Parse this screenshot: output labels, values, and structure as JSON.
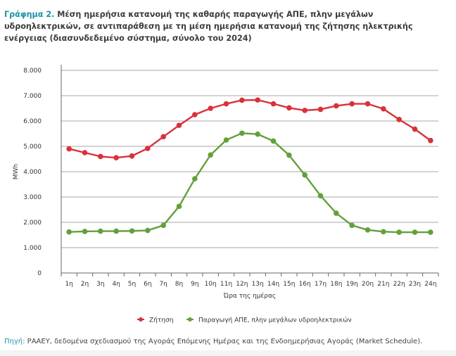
{
  "title": {
    "lead": "Γράφημα 2.",
    "text": "Μέση ημερήσια κατανομή της καθαρής παραγωγής ΑΠΕ, πλην μεγάλων υδροηλεκτρικών, σε αντιπαράθεση με τη μέση ημερήσια κατανομή της ζήτησης ηλεκτρικής ενέργειας (διασυνδεδεμένο σύστημα, σύνολο του 2024)"
  },
  "source": {
    "lead": "Πηγή:",
    "text": "ΡΑΑΕΥ, δεδομένα σχεδιασμού της Αγοράς Επόμενης Ημέρας και της Ενδοημερήσιας Αγοράς (Market Schedule)."
  },
  "chart_data": {
    "type": "line",
    "title": "",
    "xlabel": "Ώρα της ημέρας",
    "ylabel": "MWh",
    "ylim": [
      0,
      8000
    ],
    "yticks": [
      "0",
      "1.000",
      "2.000",
      "3.000",
      "4.000",
      "5.000",
      "6.000",
      "7.000",
      "8.000"
    ],
    "grid": true,
    "legend": "bottom",
    "categories": [
      "1η",
      "2η",
      "3η",
      "4η",
      "5η",
      "6η",
      "7η",
      "8η",
      "9η",
      "10η",
      "11η",
      "12η",
      "13η",
      "14η",
      "15η",
      "16η",
      "17η",
      "18η",
      "19η",
      "20η",
      "21η",
      "22η",
      "23η",
      "24η"
    ],
    "series": [
      {
        "name": "Ζήτηση",
        "color": "#d9313a",
        "values": [
          4900,
          4750,
          4600,
          4550,
          4620,
          4920,
          5380,
          5830,
          6250,
          6500,
          6680,
          6820,
          6830,
          6680,
          6520,
          6420,
          6460,
          6600,
          6680,
          6680,
          6480,
          6060,
          5680,
          5230
        ]
      },
      {
        "name": "Παραγωγή ΑΠΕ, πλην μεγάλων υδροηλεκτρικών",
        "color": "#63a03c",
        "values": [
          1620,
          1640,
          1650,
          1650,
          1660,
          1680,
          1880,
          2630,
          3720,
          4660,
          5250,
          5520,
          5480,
          5210,
          4650,
          3870,
          3050,
          2360,
          1880,
          1700,
          1630,
          1610,
          1610,
          1610
        ]
      }
    ]
  }
}
